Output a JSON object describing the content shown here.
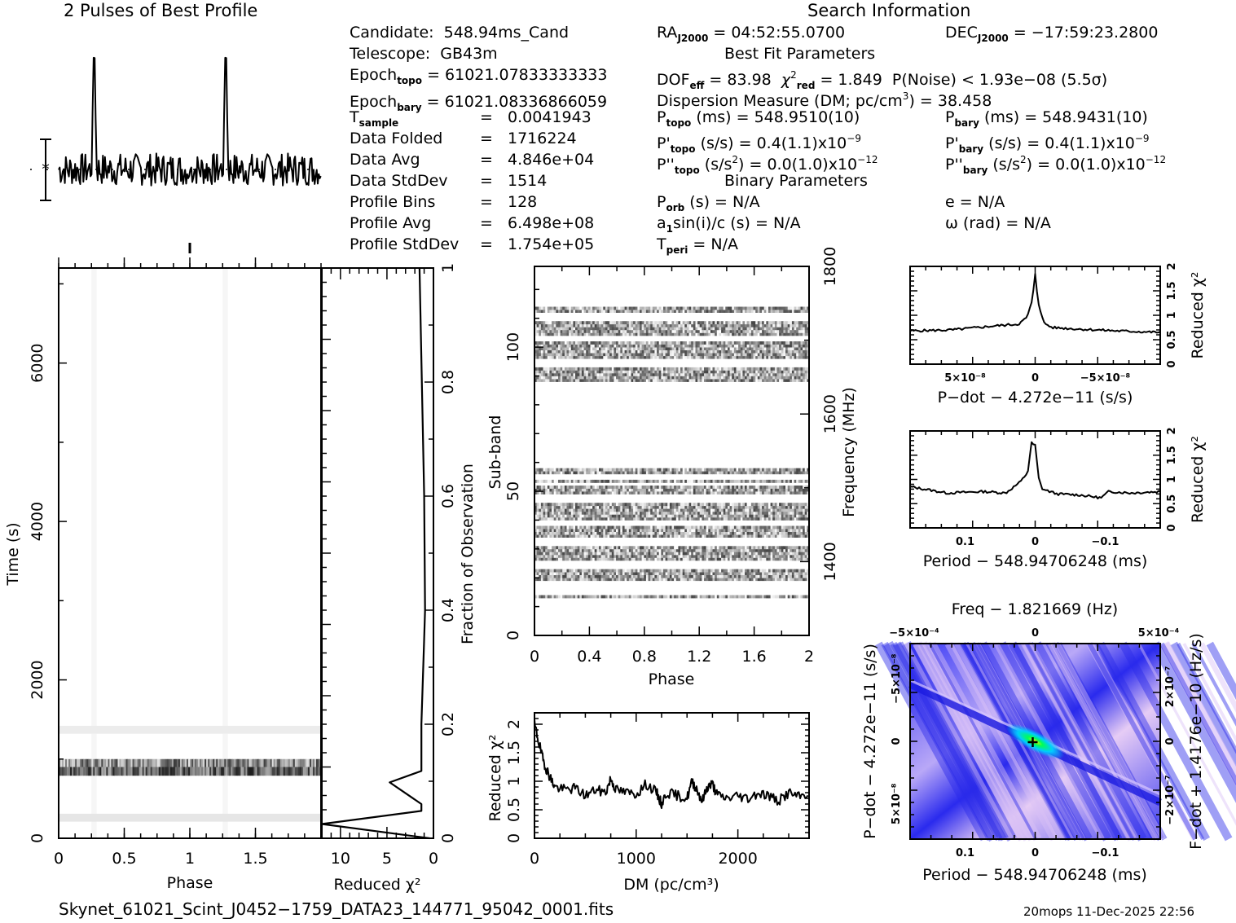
{
  "title_profile": "2 Pulses of Best Profile",
  "title_search": "Search Information",
  "info_left": [
    {
      "label": "Candidate:",
      "value": "548.94ms_Cand"
    },
    {
      "label": "Telescope:",
      "value": "GB43m"
    },
    {
      "label": "Epoch",
      "sub": "topo",
      "value": "= 61021.07833333333"
    },
    {
      "label": "Epoch",
      "sub": "bary",
      "value": "= 61021.08336866059"
    },
    {
      "label": "T",
      "sub": "sample",
      "value": "0.0041943"
    },
    {
      "label": "Data Folded",
      "value": "1716224"
    },
    {
      "label": "Data Avg",
      "value": "4.846e+04"
    },
    {
      "label": "Data StdDev",
      "value": "1514"
    },
    {
      "label": "Profile Bins",
      "value": "128"
    },
    {
      "label": "Profile Avg",
      "value": "6.498e+08"
    },
    {
      "label": "Profile StdDev",
      "value": "1.754e+05"
    }
  ],
  "info_mid": {
    "ra_label": "RA",
    "ra_sub": "J2000",
    "ra_value": "= 04:52:55.0700",
    "dec_label": "DEC",
    "dec_sub": "J2000",
    "dec_value": "= −17:59:23.2800",
    "best_fit_heading": "Best Fit Parameters",
    "dof_label": "DOF",
    "dof_sub": "eff",
    "dof_value": "= 83.98",
    "chi_label": "χ",
    "chi_sup": "2",
    "chi_sub": "red",
    "chi_value": "= 1.849",
    "pnoise": "P(Noise) < 1.93e−08   (5.5σ)",
    "dm_line_pre": "Dispersion Measure (DM; pc/cm",
    "dm_sup": "3",
    "dm_line_post": ") = 38.458",
    "ptopo_label": "P",
    "ptopo_sub": "topo",
    "ptopo_value": "(ms) =  548.9510(10)",
    "pdtopo_label": "P'",
    "pdtopo_sub": "topo",
    "pdtopo_value": "(s/s) =  0.4(1.1)x10",
    "pdtopo_exp": "−9",
    "pddtopo_label": "P''",
    "pddtopo_sub": "topo",
    "pddtopo_value_pre": "(s/s",
    "pddtopo_sup": "2",
    "pddtopo_value_post": ") = 0.0(1.0)x10",
    "pddtopo_exp": "−12",
    "pbary_label": "P",
    "pbary_sub": "bary",
    "pbary_value": "(ms) =  548.9431(10)",
    "pdbary_label": "P'",
    "pdbary_sub": "bary",
    "pdbary_value": "(s/s) =  0.4(1.1)x10",
    "pdbary_exp": "−9",
    "pddbary_label": "P''",
    "pddbary_sub": "bary",
    "pddbary_value_pre": "(s/s",
    "pddbary_sup": "2",
    "pddbary_value_post": ") = 0.0(1.0)x10",
    "pddbary_exp": "−12",
    "binary_heading": "Binary Parameters",
    "porb_label": "P",
    "porb_sub": "orb",
    "porb_value": "(s) = N/A",
    "a1_label": "a",
    "a1_sub": "1",
    "a1_value": "sin(i)/c (s) = N/A",
    "tperi_label": "T",
    "tperi_sub": "peri",
    "tperi_value": "= N/A",
    "e_value": "e = N/A",
    "omega_value": "ω (rad) = N/A"
  },
  "eq_sign": "=",
  "footer_file": "Skynet_61021_Scint_J0452−1759_DATA23_144771_95042_0001.fits",
  "footer_stamp": "20mops 11-Dec-2025 22:56",
  "colors": {
    "ink": "#000000",
    "ppdot_low": "#1a1aff",
    "ppdot_mid": "#ccb3ff",
    "ppdot_peak": "#00ff66"
  },
  "chart_data": [
    {
      "id": "profile",
      "type": "line",
      "title": "2 Pulses of Best Profile",
      "xlabel": "",
      "ylabel": "",
      "pulse_phases": [
        0.27,
        1.27
      ],
      "peak_norm": 1.0,
      "noise_norm": 0.22,
      "phase_range": [
        0,
        2
      ]
    },
    {
      "id": "time_phase",
      "type": "heatmap",
      "xlabel": "Phase",
      "ylabel": "Time (s)",
      "xlim": [
        0,
        2
      ],
      "ylim": [
        0,
        7200
      ],
      "xticks": [
        "0",
        "0.5",
        "1",
        "1.5"
      ],
      "yticks": [
        "0",
        "2000",
        "4000",
        "6000"
      ],
      "bright_bands_time": [
        [
          820,
          1000
        ],
        [
          200,
          300
        ],
        [
          1300,
          1420
        ]
      ]
    },
    {
      "id": "time_chi2",
      "type": "line",
      "xlabel": "Reduced χ²",
      "ylabel": "Fraction of Observation",
      "xlim": [
        12,
        0
      ],
      "ylim": [
        0,
        1
      ],
      "xticks": [
        "10",
        "5",
        "0"
      ],
      "yticks": [
        "0",
        "0.2",
        "0.4",
        "0.6",
        "0.8",
        "1"
      ],
      "x": [
        0.4,
        12,
        1.3,
        1.3,
        4.7,
        1.3,
        1.3,
        1.0,
        0.9,
        1.0,
        1.5
      ],
      "y": [
        0,
        0.025,
        0.048,
        0.06,
        0.098,
        0.118,
        0.2,
        0.35,
        0.4,
        0.6,
        1.0
      ]
    },
    {
      "id": "subband_phase",
      "type": "heatmap",
      "xlabel": "Phase",
      "ylabel": "Sub-band",
      "y2label": "Frequency (MHz)",
      "xlim": [
        0,
        2
      ],
      "ylim": [
        0,
        128
      ],
      "y2lim": [
        1300,
        1800
      ],
      "xticks": [
        "0",
        "0.4",
        "0.8",
        "1.2",
        "1.6",
        "2"
      ],
      "yticks": [
        "0",
        "50",
        "100"
      ],
      "y2ticks": [
        "1400",
        "1600",
        "1800"
      ],
      "occupied_subbands": [
        [
          13,
          14
        ],
        [
          19,
          23
        ],
        [
          26,
          31
        ],
        [
          34,
          38
        ],
        [
          40,
          46
        ],
        [
          49,
          52
        ],
        [
          53,
          54
        ],
        [
          56,
          58
        ],
        [
          88,
          93
        ],
        [
          96,
          102
        ],
        [
          104,
          109
        ],
        [
          112,
          114
        ]
      ]
    },
    {
      "id": "dm_chi2",
      "type": "line",
      "xlabel": "DM (pc/cm³)",
      "ylabel": "Reduced χ²",
      "xlim": [
        0,
        2700
      ],
      "ylim": [
        0,
        2.2
      ],
      "xticks": [
        "0",
        "1000",
        "2000"
      ],
      "yticks": [
        "0",
        "0.5",
        "1",
        "1.5",
        "2"
      ],
      "x": [
        0,
        40,
        80,
        120,
        160,
        200,
        300,
        400,
        500,
        600,
        700,
        750,
        800,
        900,
        1000,
        1100,
        1200,
        1250,
        1300,
        1400,
        1500,
        1550,
        1600,
        1650,
        1700,
        1750,
        1800,
        1900,
        2000,
        2100,
        2200,
        2300,
        2400,
        2500,
        2600,
        2700
      ],
      "y": [
        2.0,
        1.7,
        1.4,
        1.2,
        1.05,
        0.9,
        0.85,
        0.88,
        0.75,
        0.85,
        0.8,
        1.05,
        0.85,
        0.8,
        0.78,
        0.95,
        0.8,
        0.6,
        0.8,
        0.75,
        0.7,
        1.0,
        0.85,
        0.65,
        0.9,
        0.95,
        0.75,
        0.7,
        0.75,
        0.7,
        0.8,
        0.75,
        0.65,
        0.8,
        0.72,
        0.8
      ]
    },
    {
      "id": "pdot_chi2",
      "type": "line",
      "xlabel": "P−dot − 4.272e−11 (s/s)",
      "ylabel": "Reduced χ²",
      "xlim": [
        9e-08,
        -9e-08
      ],
      "ylim": [
        0,
        2
      ],
      "xticks": [
        "5×10⁻⁸",
        "0",
        "−5×10⁻⁸"
      ],
      "yticks": [
        "0",
        "0.5",
        "1",
        "1.5",
        "2"
      ],
      "x": [
        9e-08,
        6e-08,
        3e-08,
        1.2e-08,
        6e-09,
        2e-09,
        0,
        -2e-09,
        -6e-09,
        -1.2e-08,
        -3e-08,
        -6e-08,
        -9e-08
      ],
      "y": [
        0.68,
        0.7,
        0.78,
        0.82,
        0.95,
        1.3,
        1.85,
        1.3,
        0.85,
        0.75,
        0.72,
        0.68,
        0.65
      ]
    },
    {
      "id": "period_chi2",
      "type": "line",
      "xlabel": "Period − 548.94706248 (ms)",
      "ylabel": "Reduced χ²",
      "xlim": [
        0.17,
        -0.17
      ],
      "ylim": [
        0,
        2
      ],
      "xticks": [
        "0.1",
        "0",
        "−0.1"
      ],
      "yticks": [
        "0",
        "0.5",
        "1",
        "1.5",
        "2"
      ],
      "x": [
        0.17,
        0.12,
        0.07,
        0.04,
        0.02,
        0.01,
        0.005,
        0.0,
        -0.005,
        -0.01,
        -0.03,
        -0.06,
        -0.09,
        -0.1,
        -0.13,
        -0.17
      ],
      "y": [
        0.85,
        0.72,
        0.75,
        0.72,
        0.95,
        1.15,
        1.75,
        1.7,
        1.0,
        0.8,
        0.7,
        0.68,
        0.62,
        0.75,
        0.72,
        0.75
      ]
    },
    {
      "id": "p_pdot",
      "type": "heatmap",
      "title": "Freq − 1.821669 (Hz)",
      "xlabel": "Period − 548.94706248 (ms)",
      "ylabel": "P−dot − 4.272e−11 (s/s)",
      "y2label": "F−dot + 1.4176e−10 (Hz/s)",
      "xlim": [
        0.17,
        -0.17
      ],
      "ylim": [
        9e-08,
        -9e-08
      ],
      "xticks": [
        "0.1",
        "0",
        "−0.1"
      ],
      "x2ticks": [
        "−5×10⁻⁴",
        "0",
        "5×10⁻⁴"
      ],
      "yticks": [
        "−5×10⁻⁸",
        "0",
        "5×10⁻⁸"
      ],
      "y2ticks": [
        "2×10⁻⁷",
        "0",
        "−2×10⁻⁷"
      ],
      "peak": [
        0.0,
        0.0
      ]
    }
  ]
}
